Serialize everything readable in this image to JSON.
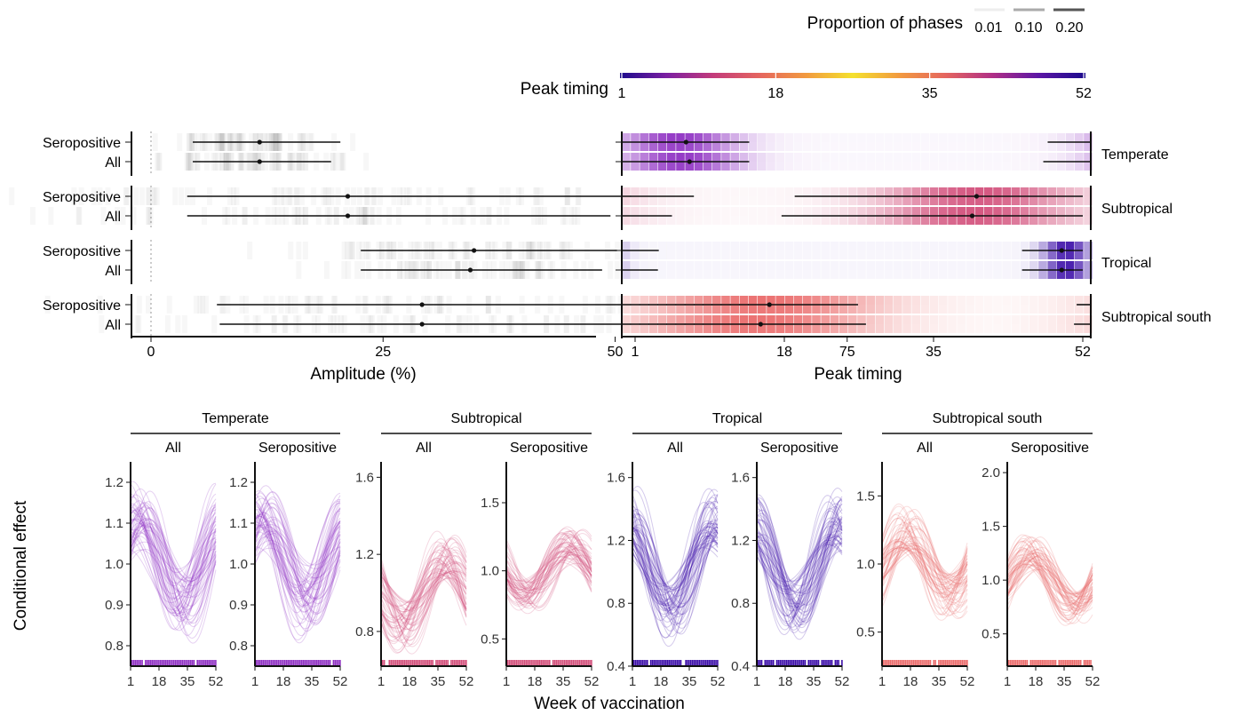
{
  "legend": {
    "proportion_title": "Proportion of phases",
    "proportion_levels": [
      "0.01",
      "0.10",
      "0.20"
    ],
    "proportion_shades": [
      "#eeeeee",
      "#aaaaaa",
      "#555555"
    ],
    "peak_title": "Peak timing",
    "peak_ticks": [
      "1",
      "18",
      "35",
      "52"
    ],
    "gradient_colors": [
      "#1c0b8c",
      "#7b1fa2",
      "#c33b7b",
      "#e5655f",
      "#f29a3f",
      "#f4e12d",
      "#f29a3f",
      "#e5655f",
      "#b02f86",
      "#5b16a5",
      "#1c0b8c"
    ]
  },
  "regions": [
    {
      "name": "Temperate",
      "color": "#8e2fc2"
    },
    {
      "name": "Subtropical",
      "color": "#d24e7a"
    },
    {
      "name": "Tropical",
      "color": "#3c0ea8"
    },
    {
      "name": "Subtropical south",
      "color": "#ea6a6a"
    }
  ],
  "groups": [
    "Seropositive",
    "All"
  ],
  "top_left": {
    "xlabel": "Amplitude (%)",
    "xlim": [
      -8,
      92
    ],
    "xticks": [
      0,
      25,
      50,
      75
    ],
    "xtick_labels": [
      "0",
      "25",
      "50",
      "75"
    ]
  },
  "top_right": {
    "xlabel": "Peak timing",
    "xlim": [
      1,
      52
    ],
    "xticks": [
      1,
      18,
      35,
      52
    ],
    "xtick_labels": [
      "1",
      "18",
      "35",
      "52"
    ]
  },
  "bottom": {
    "ylabel": "Conditional effect",
    "xlabel": "Week of vaccination",
    "xtick_labels": [
      "1",
      "18",
      "35",
      "52"
    ],
    "panels": [
      {
        "region": "Temperate",
        "group": "All",
        "ylim": [
          0.75,
          1.25
        ],
        "yticks": [
          0.8,
          0.9,
          1.0,
          1.1,
          1.2
        ],
        "ytick_labels": [
          "0.8",
          "0.9",
          "1.0",
          "1.1",
          "1.2"
        ]
      },
      {
        "region": "Temperate",
        "group": "Seropositive",
        "ylim": [
          0.75,
          1.25
        ],
        "yticks": [
          0.8,
          0.9,
          1.0,
          1.1,
          1.2
        ],
        "ytick_labels": [
          "0.8",
          "0.9",
          "1.0",
          "1.1",
          "1.2"
        ]
      },
      {
        "region": "Subtropical",
        "group": "All",
        "ylim": [
          0.62,
          1.68
        ],
        "yticks": [
          0.8,
          1.2,
          1.6
        ],
        "ytick_labels": [
          "0.8",
          "1.2",
          "1.6"
        ]
      },
      {
        "region": "Subtropical",
        "group": "Seropositive",
        "ylim": [
          0.3,
          1.8
        ],
        "yticks": [
          0.5,
          1.0,
          1.5
        ],
        "ytick_labels": [
          "0.5",
          "1.0",
          "1.5"
        ]
      },
      {
        "region": "Tropical",
        "group": "All",
        "ylim": [
          0.4,
          1.7
        ],
        "yticks": [
          0.4,
          0.8,
          1.2,
          1.6
        ],
        "ytick_labels": [
          "0.4",
          "0.8",
          "1.2",
          "1.6"
        ]
      },
      {
        "region": "Tropical",
        "group": "Seropositive",
        "ylim": [
          0.4,
          1.7
        ],
        "yticks": [
          0.4,
          0.8,
          1.2,
          1.6
        ],
        "ytick_labels": [
          "0.4",
          "0.8",
          "1.2",
          "1.6"
        ]
      },
      {
        "region": "Subtropical south",
        "group": "All",
        "ylim": [
          0.25,
          1.75
        ],
        "yticks": [
          0.5,
          1.0,
          1.5
        ],
        "ytick_labels": [
          "0.5",
          "1.0",
          "1.5"
        ]
      },
      {
        "region": "Subtropical south",
        "group": "Seropositive",
        "ylim": [
          0.2,
          2.1
        ],
        "yticks": [
          0.5,
          1.0,
          1.5,
          2.0
        ],
        "ytick_labels": [
          "0.5",
          "1.0",
          "1.5",
          "2.0"
        ]
      }
    ]
  },
  "chart_data": [
    {
      "type": "forest",
      "title": "",
      "xlabel": "Amplitude (%)",
      "xlim": [
        -8,
        92
      ],
      "rows": [
        {
          "region": "Temperate",
          "group": "Seropositive",
          "estimate": 11.7,
          "low": 4.5,
          "high": 20.4
        },
        {
          "region": "Temperate",
          "group": "All",
          "estimate": 11.7,
          "low": 4.5,
          "high": 19.4
        },
        {
          "region": "Subtropical",
          "group": "Seropositive",
          "estimate": 21.2,
          "low": 3.9,
          "high": 52.0
        },
        {
          "region": "Subtropical",
          "group": "All",
          "estimate": 21.2,
          "low": 3.9,
          "high": 49.5
        },
        {
          "region": "Tropical",
          "group": "Seropositive",
          "estimate": 34.8,
          "low": 22.6,
          "high": 50.2
        },
        {
          "region": "Tropical",
          "group": "All",
          "estimate": 34.4,
          "low": 22.6,
          "high": 48.6
        },
        {
          "region": "Subtropical south",
          "group": "Seropositive",
          "estimate": 29.2,
          "low": 7.1,
          "high": 65.0
        },
        {
          "region": "Subtropical south",
          "group": "All",
          "estimate": 29.2,
          "low": 7.4,
          "high": 60.0
        }
      ]
    },
    {
      "type": "forest",
      "title": "",
      "xlabel": "Peak timing",
      "xlim": [
        1,
        52
      ],
      "note": "circular intervals wrap around week 52",
      "rows": [
        {
          "region": "Temperate",
          "group": "Seropositive",
          "estimate": 6.8,
          "low": 1,
          "high": 14.0,
          "wrap_low": 48.0
        },
        {
          "region": "Temperate",
          "group": "All",
          "estimate": 7.2,
          "low": 1,
          "high": 14.0,
          "wrap_low": 47.5
        },
        {
          "region": "Subtropical",
          "group": "Seropositive",
          "estimate": 39.9,
          "low": 20.7,
          "high": 52,
          "wrap_high": 7.7
        },
        {
          "region": "Subtropical",
          "group": "All",
          "estimate": 39.4,
          "low": 19.2,
          "high": 52,
          "wrap_high": 5.2
        },
        {
          "region": "Tropical",
          "group": "Seropositive",
          "estimate": 49.6,
          "low": 46.6,
          "high": 52,
          "wrap_high": 3.7
        },
        {
          "region": "Tropical",
          "group": "All",
          "estimate": 49.6,
          "low": 46.6,
          "high": 52,
          "wrap_high": 3.6
        },
        {
          "region": "Subtropical south",
          "group": "Seropositive",
          "estimate": 16.3,
          "low": 1,
          "high": 26.4,
          "wrap_low": 51.3
        },
        {
          "region": "Subtropical south",
          "group": "All",
          "estimate": 15.3,
          "low": 1,
          "high": 27.3,
          "wrap_low": 51.0
        }
      ]
    },
    {
      "type": "line",
      "title": "",
      "xlabel": "Week of vaccination",
      "ylabel": "Conditional effect",
      "x_range": [
        1,
        52
      ],
      "note": "posterior draws of a seasonal sinusoid per panel; mean curve summarised by mean, amplitude, peak week",
      "series": [
        {
          "region": "Temperate",
          "group": "All",
          "mean": 1.01,
          "amplitude": 0.12,
          "peak_week": 6
        },
        {
          "region": "Temperate",
          "group": "Seropositive",
          "mean": 1.01,
          "amplitude": 0.12,
          "peak_week": 6
        },
        {
          "region": "Subtropical",
          "group": "All",
          "mean": 1.0,
          "amplitude": 0.21,
          "peak_week": 40
        },
        {
          "region": "Subtropical",
          "group": "Seropositive",
          "mean": 1.0,
          "amplitude": 0.21,
          "peak_week": 40
        },
        {
          "region": "Tropical",
          "group": "All",
          "mean": 1.04,
          "amplitude": 0.34,
          "peak_week": 50
        },
        {
          "region": "Tropical",
          "group": "Seropositive",
          "mean": 1.04,
          "amplitude": 0.34,
          "peak_week": 50
        },
        {
          "region": "Subtropical south",
          "group": "All",
          "mean": 1.0,
          "amplitude": 0.29,
          "peak_week": 16
        },
        {
          "region": "Subtropical south",
          "group": "Seropositive",
          "mean": 1.0,
          "amplitude": 0.29,
          "peak_week": 16
        }
      ]
    }
  ]
}
